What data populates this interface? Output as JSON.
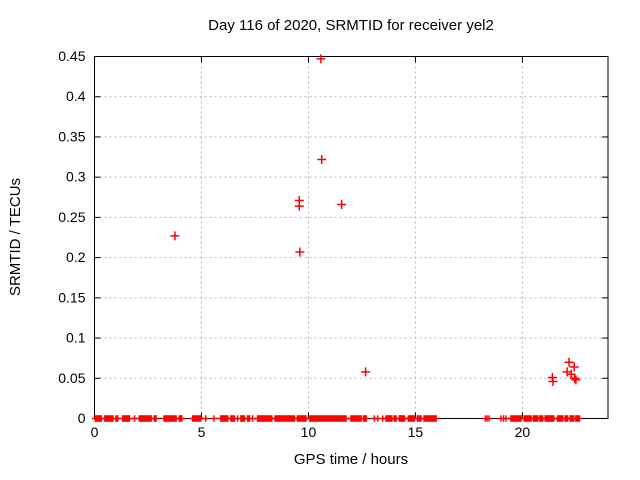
{
  "window": {
    "background_color": "#ffffff",
    "border_color": "#000000",
    "grid_color": "#b4b4b4",
    "text_color": "#000000"
  },
  "chart_data": {
    "type": "scatter",
    "title": "Day 116 of 2020, SRMTID for receiver yel2",
    "xlabel": "GPS time / hours",
    "ylabel": "SRMTID / TECUs",
    "xlim": [
      0,
      24
    ],
    "ylim": [
      0,
      0.45
    ],
    "grid": true,
    "legend_position": "none",
    "x_ticks": [
      {
        "value": 0,
        "label": "0"
      },
      {
        "value": 5,
        "label": "5"
      },
      {
        "value": 10,
        "label": "10"
      },
      {
        "value": 15,
        "label": "15"
      },
      {
        "value": 20,
        "label": "20"
      }
    ],
    "y_ticks": [
      {
        "value": 0,
        "label": "0"
      },
      {
        "value": 0.05,
        "label": "0.05"
      },
      {
        "value": 0.1,
        "label": "0.1"
      },
      {
        "value": 0.15,
        "label": "0.15"
      },
      {
        "value": 0.2,
        "label": "0.2"
      },
      {
        "value": 0.25,
        "label": "0.25"
      },
      {
        "value": 0.3,
        "label": "0.3"
      },
      {
        "value": 0.35,
        "label": "0.35"
      },
      {
        "value": 0.4,
        "label": "0.4"
      },
      {
        "value": 0.45,
        "label": "0.45"
      }
    ],
    "series": [
      {
        "name": "SRMTID",
        "marker": "plus",
        "color": "#ff0000",
        "outlier_points": [
          [
            3.76,
            0.227
          ],
          [
            9.57,
            0.271
          ],
          [
            9.57,
            0.264
          ],
          [
            9.6,
            0.207
          ],
          [
            10.58,
            0.447
          ],
          [
            10.62,
            0.322
          ],
          [
            11.55,
            0.266
          ],
          [
            12.67,
            0.058
          ],
          [
            21.4,
            0.051
          ],
          [
            21.43,
            0.046
          ],
          [
            22.09,
            0.058
          ],
          [
            22.18,
            0.07
          ],
          [
            22.28,
            0.055
          ],
          [
            22.42,
            0.064
          ],
          [
            22.44,
            0.05
          ],
          [
            22.5,
            0.048
          ]
        ],
        "zero_value_segments": [
          [
            0.0,
            0.35
          ],
          [
            0.45,
            0.9
          ],
          [
            0.97,
            1.12
          ],
          [
            1.28,
            1.67
          ],
          [
            1.82,
            1.93
          ],
          [
            2.06,
            2.68
          ],
          [
            2.76,
            2.91
          ],
          [
            3.22,
            3.85
          ],
          [
            3.93,
            4.11
          ],
          [
            4.55,
            5.0
          ],
          [
            5.15,
            5.25
          ],
          [
            5.56,
            5.61
          ],
          [
            5.87,
            6.26
          ],
          [
            6.34,
            6.57
          ],
          [
            6.65,
            6.73
          ],
          [
            6.81,
            7.04
          ],
          [
            7.12,
            7.28
          ],
          [
            7.35,
            7.43
          ],
          [
            7.59,
            8.32
          ],
          [
            8.41,
            9.38
          ],
          [
            9.45,
            9.92
          ],
          [
            10.03,
            11.79
          ],
          [
            11.95,
            12.49
          ],
          [
            12.54,
            12.73
          ],
          [
            13.04,
            13.12
          ],
          [
            13.2,
            13.28
          ],
          [
            13.43,
            13.51
          ],
          [
            13.59,
            13.93
          ],
          [
            13.97,
            14.13
          ],
          [
            14.21,
            14.52
          ],
          [
            14.64,
            14.98
          ],
          [
            15.06,
            15.29
          ],
          [
            15.37,
            16.0
          ],
          [
            18.25,
            18.29
          ],
          [
            18.33,
            18.37
          ],
          [
            18.42,
            18.46
          ],
          [
            18.96,
            19.03
          ],
          [
            19.07,
            19.16
          ],
          [
            19.19,
            19.27
          ],
          [
            19.43,
            19.97
          ],
          [
            20.05,
            20.44
          ],
          [
            20.48,
            20.75
          ],
          [
            20.78,
            20.98
          ],
          [
            21.03,
            21.5
          ],
          [
            21.61,
            21.92
          ],
          [
            21.96,
            22.15
          ],
          [
            22.2,
            22.43
          ],
          [
            22.46,
            22.7
          ]
        ]
      }
    ]
  }
}
